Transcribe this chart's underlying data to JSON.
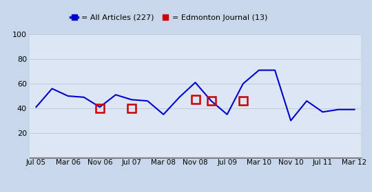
{
  "background_color": "#c8d8ea",
  "plot_bg_color": "#dce6f5",
  "legend_labels": [
    "= All Articles (227)",
    "= Edmonton Journal (13)"
  ],
  "legend_colors": [
    "#0000cc",
    "#cc0000"
  ],
  "x_tick_labels": [
    "Jul 05",
    "Mar 06",
    "Nov 06",
    "Jul 07",
    "Mar 08",
    "Nov 08",
    "Jul 09",
    "Mar 10",
    "Nov 10",
    "Jul 11",
    "Mar 12"
  ],
  "all_articles_x": [
    0,
    0.5,
    1,
    1.5,
    2,
    2.5,
    3,
    3.5,
    4,
    4.5,
    5,
    5.5,
    6,
    6.5,
    7,
    7.5,
    8,
    8.5,
    9,
    9.5,
    10
  ],
  "all_articles_y": [
    41,
    56,
    50,
    49,
    41,
    51,
    47,
    46,
    35,
    49,
    61,
    46,
    35,
    60,
    71,
    71,
    30,
    46,
    37,
    39,
    39
  ],
  "edmonton_x": [
    2,
    3,
    5,
    5.5,
    6.5
  ],
  "edmonton_y": [
    40,
    40,
    47,
    46,
    46
  ],
  "ylim": [
    0,
    100
  ],
  "yticks": [
    20,
    40,
    60,
    80,
    100
  ],
  "grid_color": "#c0ccd8",
  "line_color": "#0000cc",
  "marker_color": "#cc0000",
  "line_width": 1.5,
  "marker_size": 8
}
